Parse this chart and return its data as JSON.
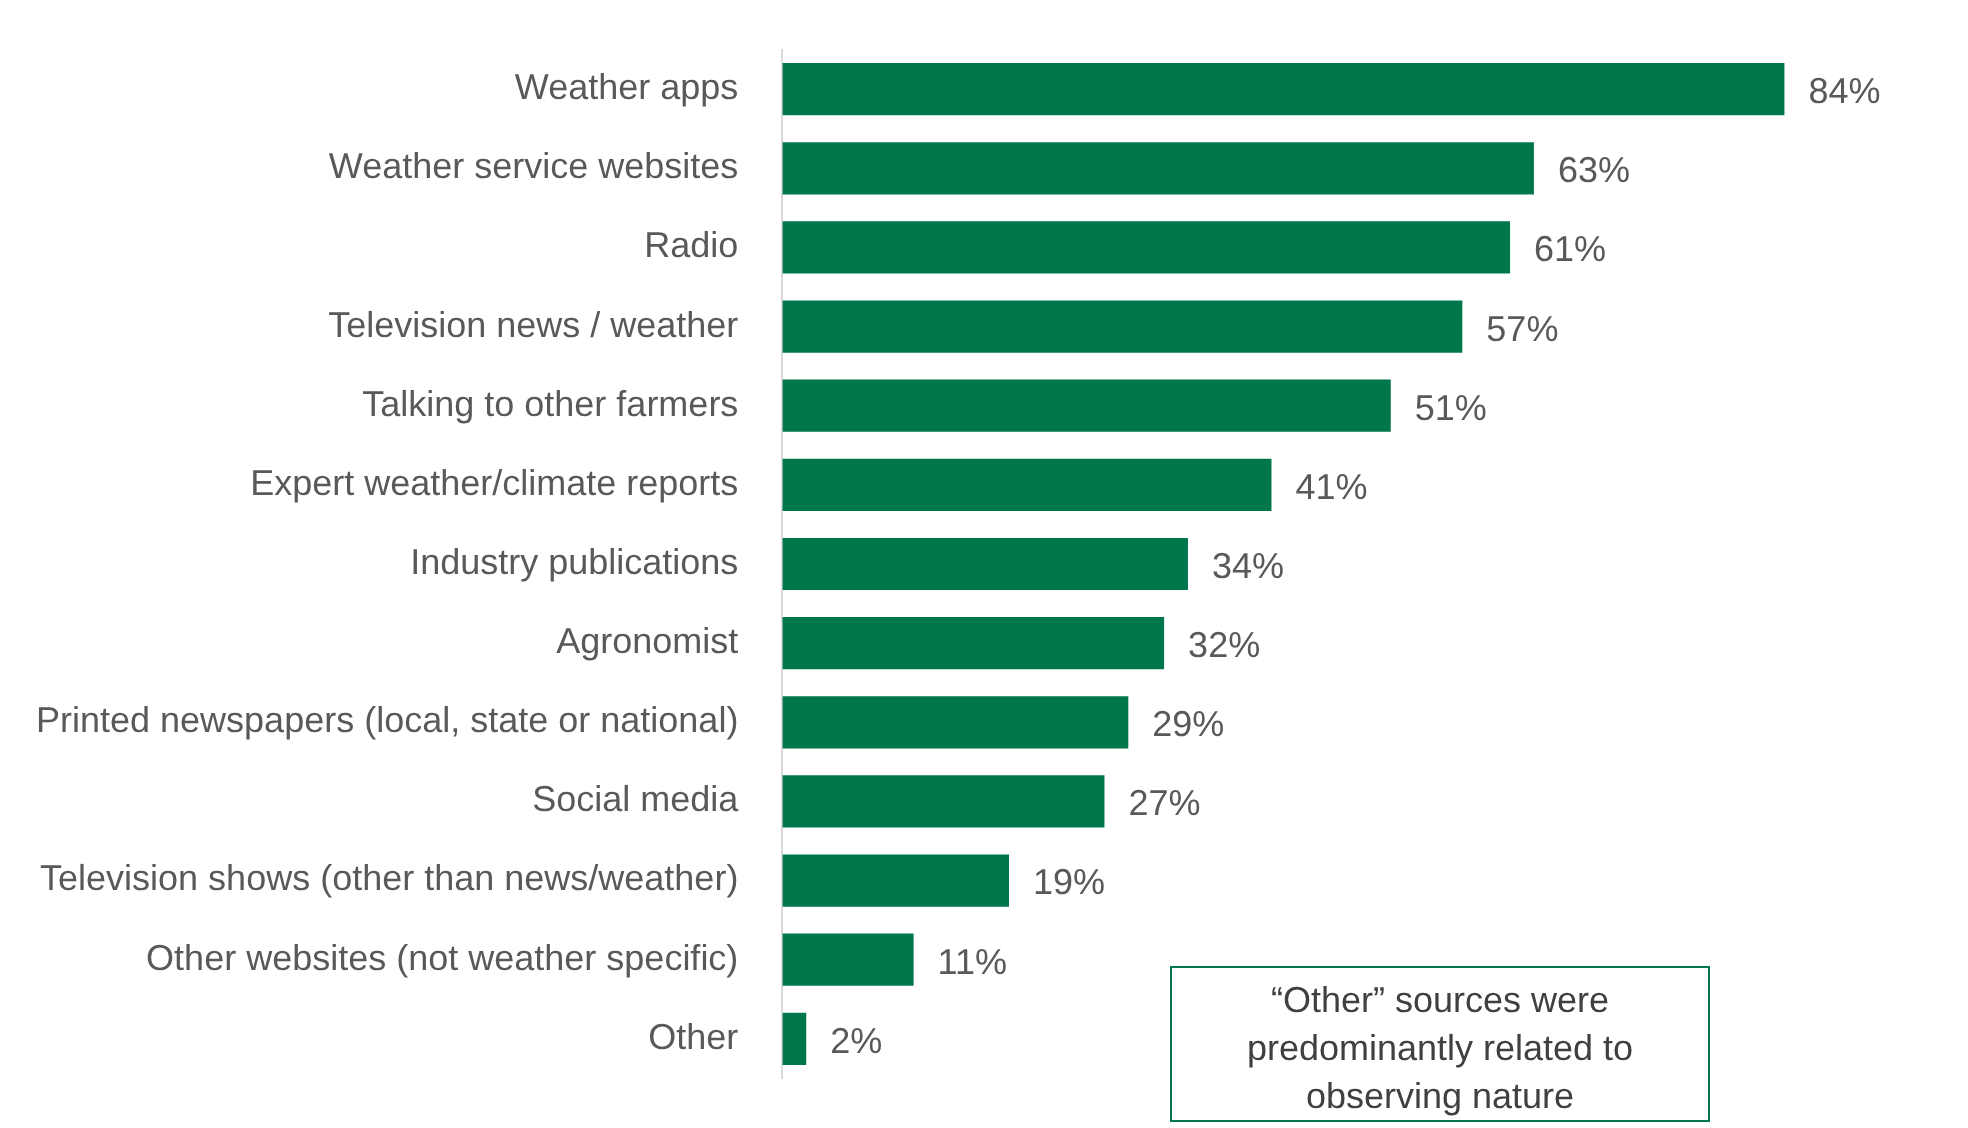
{
  "chart_data": {
    "type": "bar",
    "orientation": "horizontal",
    "categories": [
      "Weather apps",
      "Weather service websites",
      "Radio",
      "Television news / weather",
      "Talking to other farmers",
      "Expert weather/climate reports",
      "Industry publications",
      "Agronomist",
      "Printed newspapers (local, state or national)",
      "Social media",
      "Television shows (other than news/weather)",
      "Other websites (not weather specific)",
      "Other"
    ],
    "values": [
      84,
      63,
      61,
      57,
      51,
      41,
      34,
      32,
      29,
      27,
      19,
      11,
      2
    ],
    "color": "#00774a",
    "value_labels": [
      "84%",
      "63%",
      "61%",
      "57%",
      "51%",
      "41%",
      "34%",
      "32%",
      "29%",
      "27%",
      "19%",
      "11%",
      "2%"
    ],
    "annotations": [
      "“Other” sources were predominantly related to observing nature"
    ],
    "legend": false
  }
}
